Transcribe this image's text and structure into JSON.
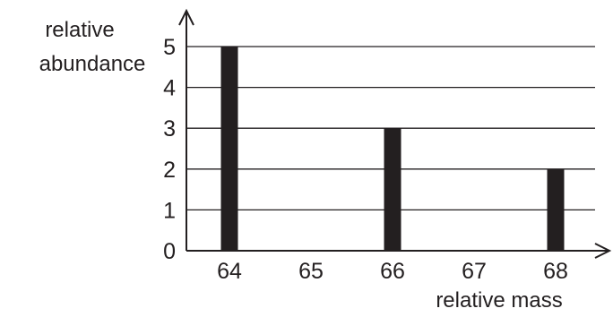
{
  "chart_data": {
    "type": "bar",
    "categories": [
      "64",
      "65",
      "66",
      "67",
      "68"
    ],
    "values": [
      5,
      0,
      3,
      0,
      2
    ],
    "title": "",
    "xlabel": "relative mass",
    "ylabel": [
      "relative",
      "abundance"
    ],
    "ylim": [
      0,
      5
    ],
    "yticks": [
      "0",
      "1",
      "2",
      "3",
      "4",
      "5"
    ],
    "grid": true,
    "colors": {
      "bar": "#231f20",
      "axis": "#231f20",
      "grid": "#231f20",
      "text": "#231f20"
    }
  }
}
